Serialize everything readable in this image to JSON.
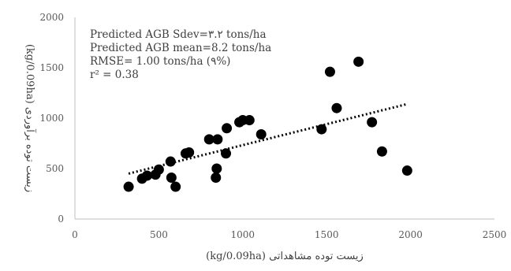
{
  "chart_data": {
    "type": "scatter",
    "x": [
      320,
      400,
      430,
      480,
      500,
      570,
      575,
      600,
      660,
      680,
      800,
      840,
      845,
      850,
      900,
      905,
      980,
      1000,
      1040,
      1110,
      1470,
      1520,
      1560,
      1690,
      1770,
      1830,
      1980
    ],
    "y": [
      320,
      400,
      430,
      440,
      490,
      570,
      410,
      320,
      650,
      660,
      790,
      410,
      500,
      790,
      650,
      900,
      960,
      980,
      980,
      840,
      890,
      1460,
      1100,
      1560,
      960,
      670,
      480
    ],
    "trendline": {
      "style": "dotted",
      "x": [
        320,
        1980
      ],
      "y": [
        450,
        1140
      ]
    },
    "xlabel": "زیست توده مشاهداتی (kg/0.09ha)",
    "ylabel": "زیست توده برآوردی (kg/0.09ha)",
    "xlim": [
      0,
      2500
    ],
    "ylim": [
      0,
      2000
    ],
    "xticks": [
      "0",
      "500",
      "1000",
      "1500",
      "2000",
      "2500"
    ],
    "yticks": [
      "0",
      "500",
      "1000",
      "1500",
      "2000"
    ],
    "grid": false,
    "annotations": [
      "Predicted AGB Sdev=۳.۲ tons/ha",
      "Predicted AGB mean=8.2 tons/ha",
      "RMSE= 1.00 tons/ha (۹%)",
      "r² = 0.38"
    ],
    "colors": {
      "marker": "#000000",
      "trendline": "#000000",
      "axis": "#bfbfbf",
      "text": "#404040"
    }
  }
}
